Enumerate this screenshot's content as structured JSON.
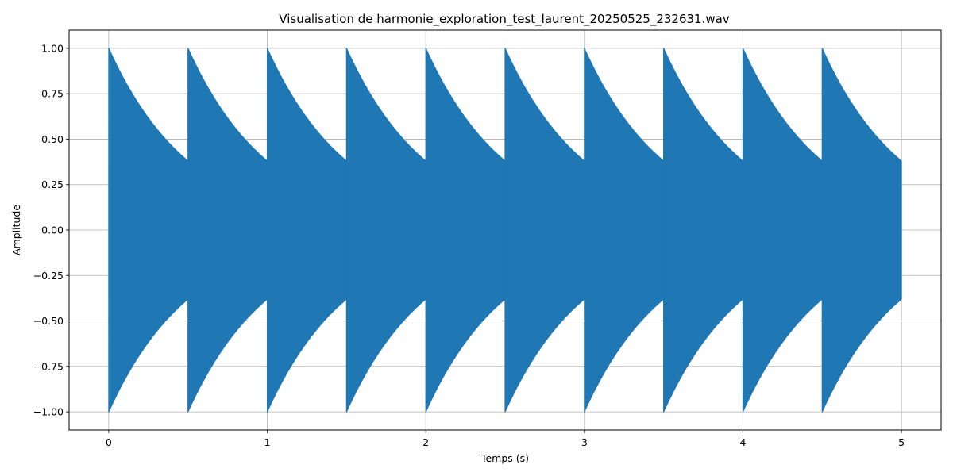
{
  "chart_data": {
    "type": "area",
    "title": "Visualisation de harmonie_exploration_test_laurent_20250525_232631.wav",
    "xlabel": "Temps (s)",
    "ylabel": "Amplitude",
    "xlim": [
      -0.25,
      5.25
    ],
    "ylim": [
      -1.1,
      1.1
    ],
    "x_ticks": [
      0,
      1,
      2,
      3,
      4,
      5
    ],
    "x_tick_labels": [
      "0",
      "1",
      "2",
      "3",
      "4",
      "5"
    ],
    "y_ticks": [
      1.0,
      0.75,
      0.5,
      0.25,
      0.0,
      -0.25,
      -0.5,
      -0.75,
      -1.0
    ],
    "y_tick_labels": [
      "1.00",
      "0.75",
      "0.50",
      "0.25",
      "0.00",
      "−0.25",
      "−0.50",
      "−0.75",
      "−1.00"
    ],
    "grid": true,
    "series": [
      {
        "color": "#1f77b4",
        "envelope": {
          "note": "",
          "pulse_starts": [
            0,
            0.5,
            1.0,
            1.5,
            2.0,
            2.5,
            3.0,
            3.5,
            4.0,
            4.5
          ],
          "pulse_duration": 0.5,
          "peak_amplitude": 1.0,
          "end_amplitude": 0.38
        }
      }
    ]
  }
}
